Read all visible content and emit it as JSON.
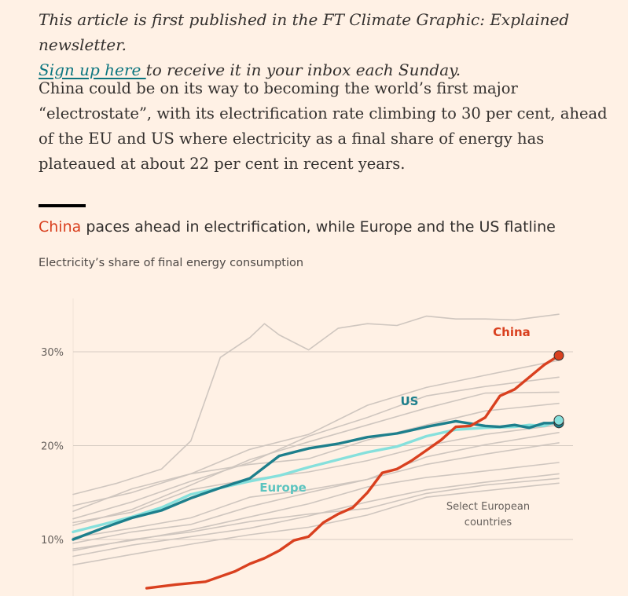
{
  "article": {
    "intro_italic": "This article is first published in the FT Climate Graphic: Explained newsletter.",
    "signup_link": "Sign up here ",
    "signup_rest": "to receive it in your inbox each Sunday.",
    "paragraph": "China could be on its way to becoming the world’s first major “electrostate”, with its electrification rate climbing to 30 per cent, ahead of the EU and US where electricity as a final share of energy has plateaued at about 22 per cent in recent years."
  },
  "chart": {
    "title_highlight": "China",
    "title_rest": " paces ahead in electrification, while Europe and the US flatline",
    "subtitle": "Electricity’s share of final energy consumption"
  },
  "colors": {
    "china": "#d9401f",
    "us": "#1d7f8c",
    "europe": "#86e0dc",
    "countries": "#cfc6bf",
    "gridline": "#d7ccc2",
    "link": "#0d7680"
  },
  "chart_data": {
    "type": "line",
    "title": "China paces ahead in electrification, while Europe and the US flatline",
    "subtitle": "Electricity’s share of final energy consumption",
    "y_ticks": [
      "10%",
      "20%",
      "30%"
    ],
    "y_tick_values": [
      10,
      20,
      30
    ],
    "ylim": [
      4,
      37
    ],
    "xlim": [
      1990,
      2023
    ],
    "grid": true,
    "annotations": {
      "china": "China",
      "us": "US",
      "europe": "Europe",
      "countries": "Select European countries"
    },
    "series": [
      {
        "name": "China",
        "role": "china",
        "x": [
          1995,
          1997,
          1999,
          2001,
          2002,
          2003,
          2004,
          2005,
          2006,
          2007,
          2008,
          2009,
          2010,
          2011,
          2012,
          2013,
          2014,
          2015,
          2016,
          2017,
          2018,
          2019,
          2020,
          2021,
          2022,
          2023
        ],
        "values": [
          4.8,
          5.2,
          5.5,
          6.6,
          7.4,
          8.0,
          8.8,
          9.9,
          10.3,
          11.8,
          12.7,
          13.4,
          15.0,
          17.1,
          17.5,
          18.4,
          19.5,
          20.6,
          22.0,
          22.1,
          23.0,
          25.3,
          26.0,
          27.3,
          28.6,
          29.6
        ]
      },
      {
        "name": "US",
        "role": "us",
        "x": [
          1990,
          1992,
          1994,
          1996,
          1998,
          2000,
          2002,
          2004,
          2006,
          2008,
          2010,
          2012,
          2014,
          2016,
          2018,
          2019,
          2020,
          2021,
          2022,
          2023
        ],
        "values": [
          10.0,
          11.2,
          12.3,
          13.1,
          14.4,
          15.5,
          16.5,
          18.9,
          19.7,
          20.2,
          20.9,
          21.3,
          22.0,
          22.6,
          22.1,
          22.0,
          22.2,
          21.9,
          22.4,
          22.4
        ]
      },
      {
        "name": "Europe",
        "role": "europe",
        "x": [
          1990,
          1992,
          1994,
          1996,
          1998,
          2000,
          2002,
          2004,
          2006,
          2008,
          2010,
          2012,
          2014,
          2016,
          2018,
          2020,
          2021,
          2022,
          2023
        ],
        "values": [
          10.8,
          11.6,
          12.4,
          13.4,
          14.8,
          15.5,
          16.2,
          16.8,
          17.7,
          18.5,
          19.3,
          19.9,
          21.0,
          21.7,
          21.9,
          22.0,
          22.2,
          22.1,
          22.7
        ]
      },
      {
        "role": "country",
        "x": [
          1990,
          1993,
          1996,
          1998,
          2000,
          2002,
          2003,
          2004,
          2006,
          2008,
          2010,
          2012,
          2014,
          2016,
          2018,
          2020,
          2023
        ],
        "values": [
          14.8,
          16.0,
          17.5,
          20.5,
          29.4,
          31.5,
          33.0,
          31.8,
          30.2,
          32.5,
          33.0,
          32.8,
          33.8,
          33.5,
          33.5,
          33.4,
          34.0
        ]
      },
      {
        "role": "country",
        "x": [
          1990,
          1994,
          1998,
          2002,
          2006,
          2010,
          2014,
          2018,
          2023
        ],
        "values": [
          13.0,
          15.4,
          17.0,
          19.6,
          21.2,
          24.3,
          26.2,
          27.5,
          29.1
        ]
      },
      {
        "role": "country",
        "x": [
          1990,
          1994,
          1998,
          2002,
          2006,
          2010,
          2014,
          2018,
          2023
        ],
        "values": [
          12.2,
          14.0,
          16.2,
          18.2,
          21.0,
          23.0,
          25.3,
          26.3,
          27.3
        ]
      },
      {
        "role": "country",
        "x": [
          1990,
          1994,
          1998,
          2002,
          2006,
          2010,
          2014,
          2018,
          2023
        ],
        "values": [
          11.5,
          13.2,
          15.8,
          18.5,
          20.4,
          22.2,
          24.0,
          25.6,
          25.7
        ]
      },
      {
        "role": "country",
        "x": [
          1990,
          1994,
          1998,
          2002,
          2006,
          2010,
          2014,
          2018,
          2023
        ],
        "values": [
          13.6,
          15.0,
          17.0,
          18.0,
          18.6,
          20.6,
          22.2,
          23.7,
          24.5
        ]
      },
      {
        "role": "country",
        "x": [
          1990,
          1994,
          1998,
          2002,
          2006,
          2010,
          2014,
          2018,
          2023
        ],
        "values": [
          11.8,
          12.9,
          15.3,
          16.4,
          17.2,
          18.4,
          20.0,
          21.2,
          22.2
        ]
      },
      {
        "role": "country",
        "x": [
          1990,
          1994,
          1998,
          2002,
          2006,
          2010,
          2014,
          2018,
          2023
        ],
        "values": [
          10.2,
          11.2,
          12.3,
          14.5,
          15.3,
          16.4,
          18.8,
          20.1,
          21.4
        ]
      },
      {
        "role": "country",
        "x": [
          1990,
          1994,
          1998,
          2002,
          2006,
          2010,
          2014,
          2018,
          2023
        ],
        "values": [
          9.6,
          10.8,
          11.6,
          13.5,
          15.0,
          16.4,
          18.0,
          19.1,
          20.3
        ]
      },
      {
        "role": "country",
        "x": [
          1990,
          1994,
          1998,
          2002,
          2006,
          2010,
          2014,
          2018,
          2023
        ],
        "values": [
          9.0,
          9.9,
          11.0,
          12.4,
          13.8,
          15.6,
          16.6,
          17.3,
          18.2
        ]
      },
      {
        "role": "country",
        "x": [
          1990,
          1994,
          1998,
          2002,
          2006,
          2010,
          2014,
          2018,
          2023
        ],
        "values": [
          8.2,
          9.4,
          10.3,
          11.2,
          12.5,
          14.0,
          15.3,
          16.1,
          17.0
        ]
      },
      {
        "role": "country",
        "x": [
          1990,
          1994,
          1998,
          2002,
          2006,
          2010,
          2014,
          2018,
          2023
        ],
        "values": [
          7.3,
          8.4,
          9.5,
          10.5,
          11.3,
          12.6,
          14.5,
          15.2,
          16.0
        ]
      },
      {
        "role": "country",
        "x": [
          1990,
          1994,
          1998,
          2002,
          2006,
          2010,
          2014,
          2018,
          2023
        ],
        "values": [
          8.8,
          10.0,
          10.8,
          11.9,
          12.7,
          13.3,
          14.9,
          15.8,
          16.5
        ]
      }
    ]
  }
}
